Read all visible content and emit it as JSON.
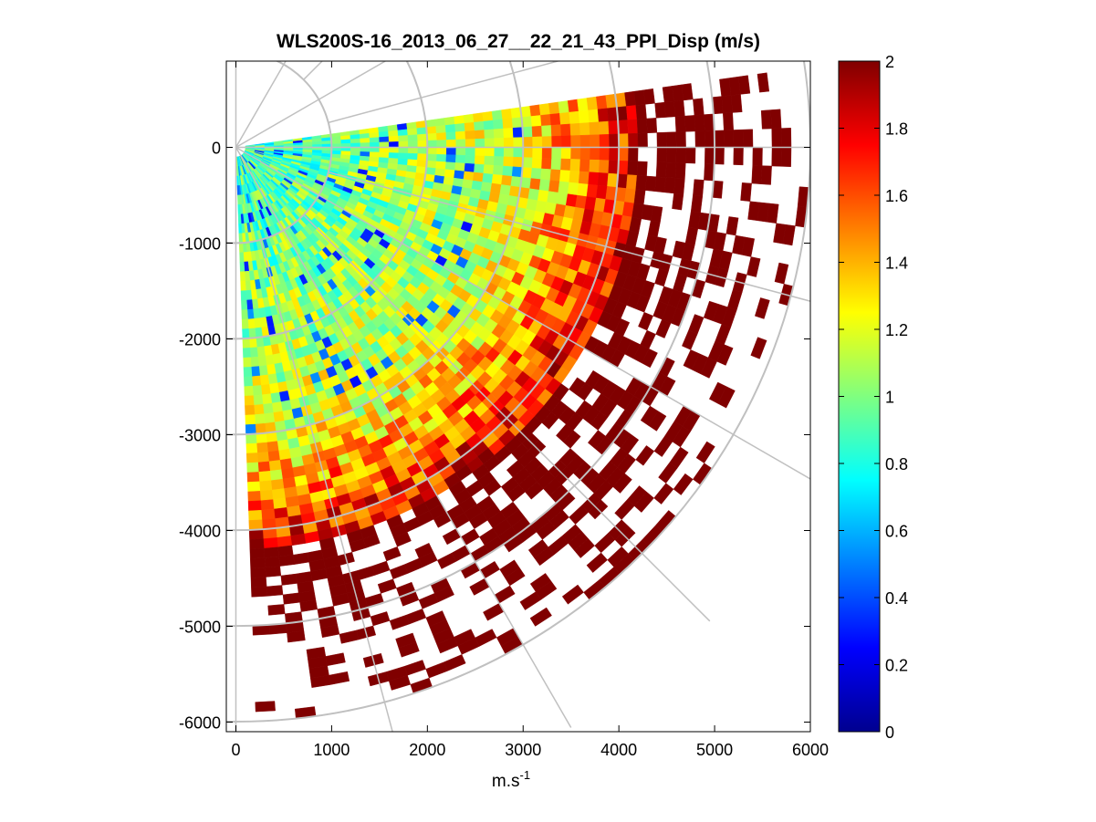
{
  "chart_data": {
    "type": "heatmap",
    "subtype": "ppi-polar-sector",
    "title": "WLS200S-16_2013_06_27__22_21_43_PPI_Disp (m/s)",
    "xlabel": "m.s",
    "xlabel_sup": "-1",
    "ylabel": "",
    "xlim": [
      -100,
      6000
    ],
    "ylim": [
      -6100,
      900
    ],
    "xticks": [
      "0",
      "1000",
      "2000",
      "3000",
      "4000",
      "5000",
      "6000"
    ],
    "yticks": [
      "-6000",
      "-5000",
      "-4000",
      "-3000",
      "-2000",
      "-1000",
      "0"
    ],
    "xtick_values": [
      0,
      1000,
      2000,
      3000,
      4000,
      5000,
      6000
    ],
    "ytick_values": [
      -6000,
      -5000,
      -4000,
      -3000,
      -2000,
      -1000,
      0
    ],
    "grid": "polar",
    "polar_rings_m": [
      1000,
      2000,
      3000,
      4000,
      5000,
      6000
    ],
    "polar_spokes_deg": [
      -90,
      -60,
      -30,
      0,
      30,
      60,
      90
    ],
    "sector": {
      "azimuth_start_deg": 8,
      "azimuth_end_deg": -88,
      "range_max_m": 6000,
      "gate_length_m": 100,
      "azimuth_step_deg": 2
    },
    "value_trend": {
      "near_range_m": 3000,
      "near_value": 0.85,
      "far_value": 2.0,
      "saturated_beyond_m": 4200,
      "missing_fraction_far": 0.45
    },
    "colorbar": {
      "colormap": "jet",
      "clim": [
        0,
        2
      ],
      "ticks": [
        "0",
        "0.2",
        "0.4",
        "0.6",
        "0.8",
        "1",
        "1.2",
        "1.4",
        "1.6",
        "1.8",
        "2"
      ],
      "tick_values": [
        0,
        0.2,
        0.4,
        0.6,
        0.8,
        1.0,
        1.2,
        1.4,
        1.6,
        1.8,
        2.0
      ]
    }
  },
  "colors": {
    "grid": "#c0c0c0",
    "axis": "#000000",
    "background": "#ffffff"
  }
}
